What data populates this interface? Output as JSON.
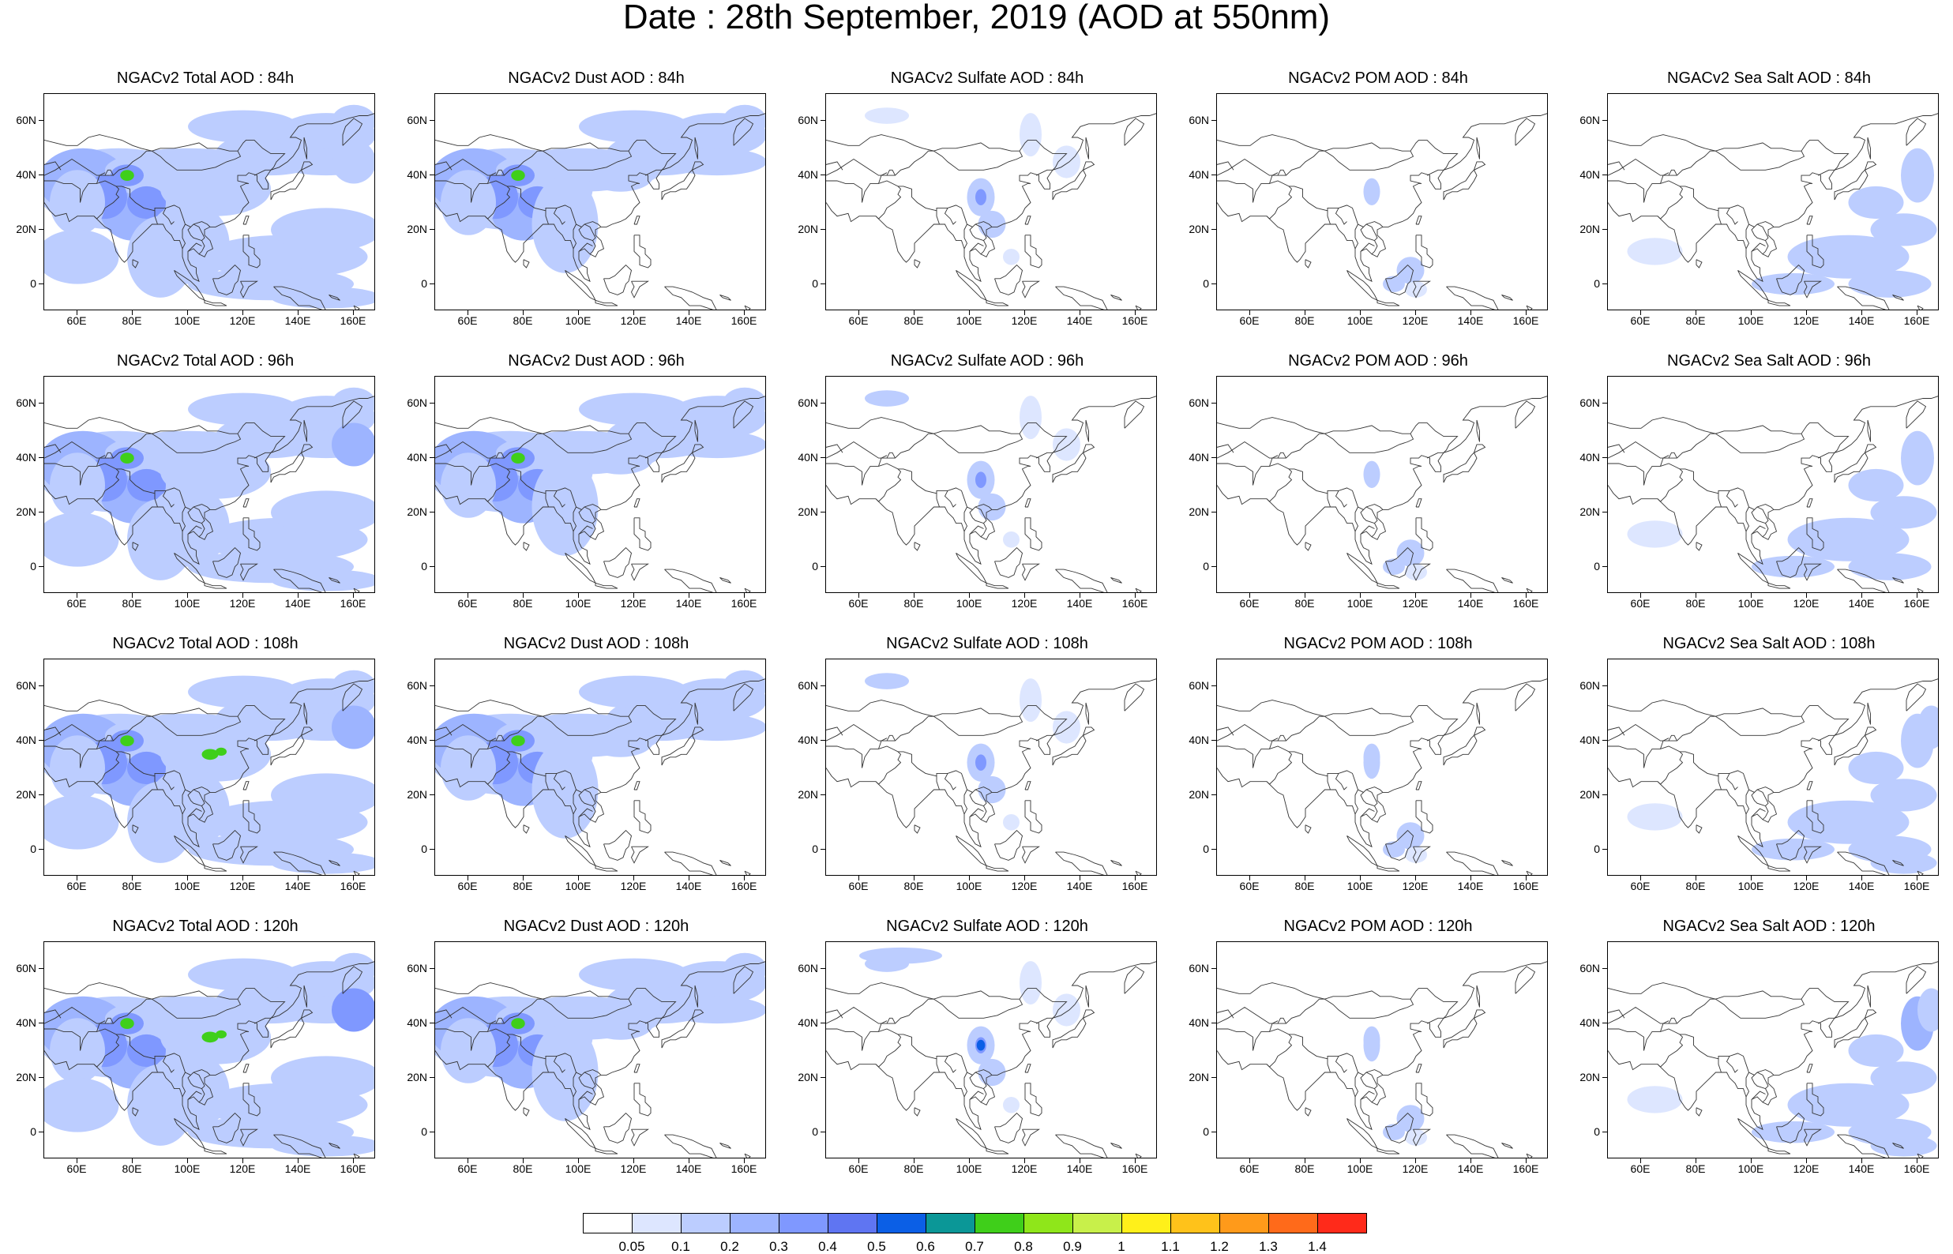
{
  "page": {
    "title": "Date : 28th September, 2019 (AOD at 550nm)"
  },
  "panels": [
    {
      "title": "NGACv2 Total AOD : 84h",
      "row": 0,
      "col": 0,
      "species": "total"
    },
    {
      "title": "NGACv2 Dust AOD : 84h",
      "row": 0,
      "col": 1,
      "species": "dust"
    },
    {
      "title": "NGACv2 Sulfate AOD : 84h",
      "row": 0,
      "col": 2,
      "species": "sulfate"
    },
    {
      "title": "NGACv2 POM AOD : 84h",
      "row": 0,
      "col": 3,
      "species": "pom"
    },
    {
      "title": "NGACv2 Sea Salt AOD : 84h",
      "row": 0,
      "col": 4,
      "species": "seasalt"
    },
    {
      "title": "NGACv2 Total AOD : 96h",
      "row": 1,
      "col": 0,
      "species": "total"
    },
    {
      "title": "NGACv2 Dust AOD : 96h",
      "row": 1,
      "col": 1,
      "species": "dust"
    },
    {
      "title": "NGACv2 Sulfate AOD : 96h",
      "row": 1,
      "col": 2,
      "species": "sulfate"
    },
    {
      "title": "NGACv2 POM AOD : 96h",
      "row": 1,
      "col": 3,
      "species": "pom"
    },
    {
      "title": "NGACv2 Sea Salt AOD : 96h",
      "row": 1,
      "col": 4,
      "species": "seasalt"
    },
    {
      "title": "NGACv2 Total AOD : 108h",
      "row": 2,
      "col": 0,
      "species": "total"
    },
    {
      "title": "NGACv2 Dust AOD : 108h",
      "row": 2,
      "col": 1,
      "species": "dust"
    },
    {
      "title": "NGACv2 Sulfate AOD : 108h",
      "row": 2,
      "col": 2,
      "species": "sulfate"
    },
    {
      "title": "NGACv2 POM AOD : 108h",
      "row": 2,
      "col": 3,
      "species": "pom"
    },
    {
      "title": "NGACv2 Sea Salt AOD : 108h",
      "row": 2,
      "col": 4,
      "species": "seasalt"
    },
    {
      "title": "NGACv2 Total AOD : 120h",
      "row": 3,
      "col": 0,
      "species": "total"
    },
    {
      "title": "NGACv2 Dust AOD : 120h",
      "row": 3,
      "col": 1,
      "species": "dust"
    },
    {
      "title": "NGACv2 Sulfate AOD : 120h",
      "row": 3,
      "col": 2,
      "species": "sulfate"
    },
    {
      "title": "NGACv2 POM AOD : 120h",
      "row": 3,
      "col": 3,
      "species": "pom"
    },
    {
      "title": "NGACv2 Sea Salt  AOD : 120h",
      "row": 3,
      "col": 4,
      "species": "seasalt"
    }
  ],
  "axes": {
    "lat_labels": [
      "60N",
      "40N",
      "20N",
      "0"
    ],
    "lat_values": [
      60,
      40,
      20,
      0
    ],
    "lon_labels": [
      "60E",
      "80E",
      "100E",
      "120E",
      "140E",
      "160E"
    ],
    "lon_values": [
      60,
      80,
      100,
      120,
      140,
      160
    ],
    "lon_range": [
      48,
      168
    ],
    "lat_range": [
      -10,
      70
    ]
  },
  "colorbar": {
    "labels": [
      "0.05",
      "0.1",
      "0.2",
      "0.3",
      "0.4",
      "0.5",
      "0.6",
      "0.7",
      "0.8",
      "0.9",
      "1",
      "1.1",
      "1.2",
      "1.3",
      "1.4"
    ],
    "colors": [
      "#ffffff",
      "#dde6ff",
      "#bccdff",
      "#9db4ff",
      "#7f98ff",
      "#5f75f2",
      "#0b5fe6",
      "#0b9797",
      "#3fcf1a",
      "#8fe61a",
      "#c8f04a",
      "#fff01a",
      "#ffc21a",
      "#ff9a1a",
      "#ff6a1a",
      "#ff2a1a"
    ]
  }
}
